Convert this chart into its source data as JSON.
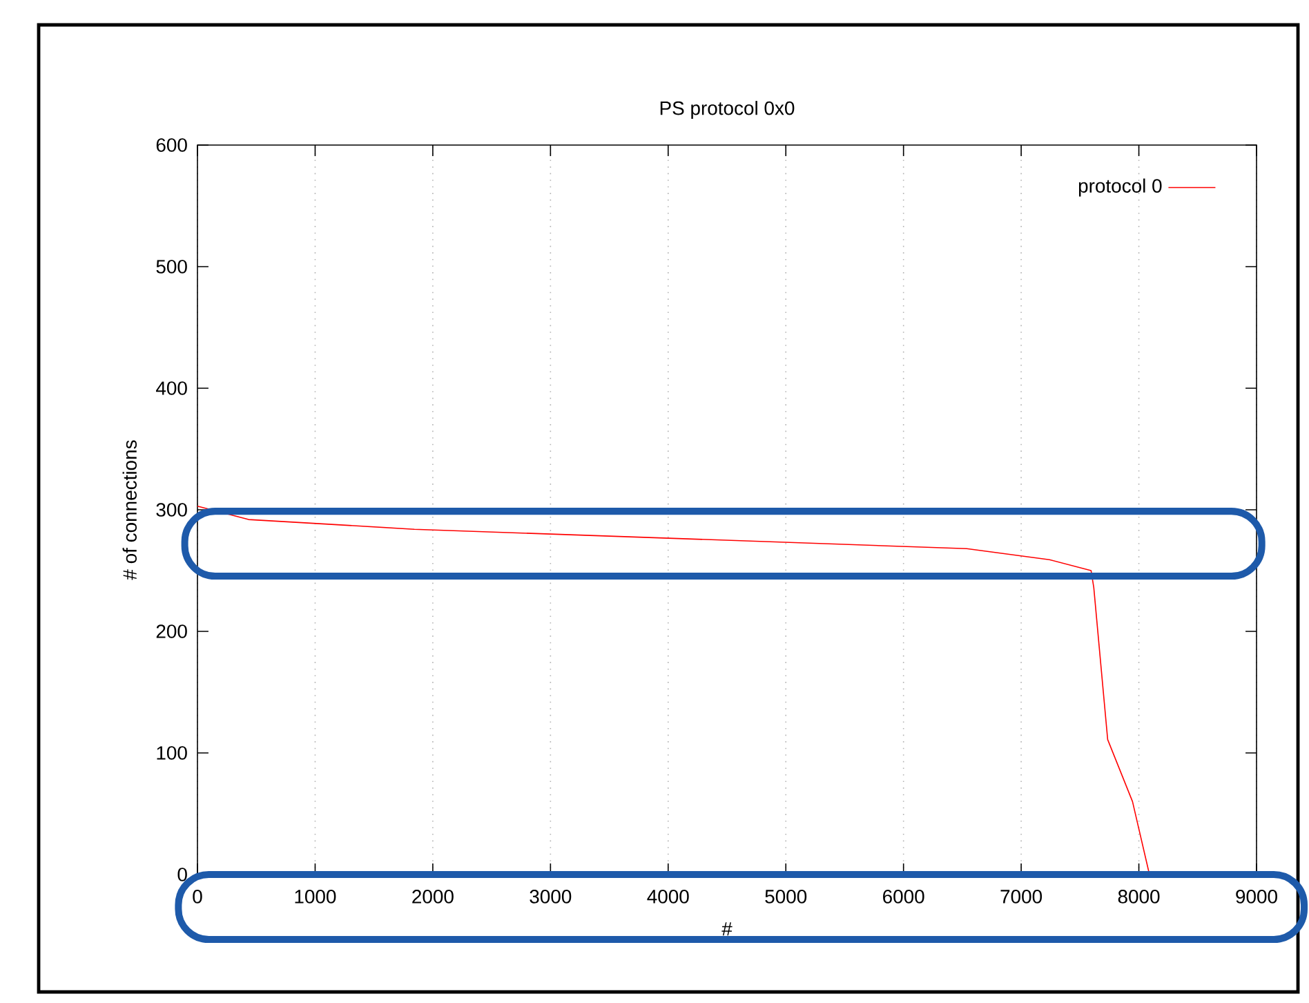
{
  "chart_data": {
    "type": "line",
    "title": "PS protocol 0x0",
    "xlabel": "#",
    "ylabel": "# of connections",
    "xlim": [
      0,
      9000
    ],
    "xticks": [
      0,
      1000,
      2000,
      3000,
      4000,
      5000,
      6000,
      7000,
      8000,
      9000
    ],
    "ylim": [
      0,
      600
    ],
    "yticks": [
      0,
      100,
      200,
      300,
      400,
      500,
      600
    ],
    "grid": "x",
    "legend": "top right",
    "series": [
      {
        "name": "protocol 0",
        "color": "#ff0000",
        "x": [
          0,
          434,
          1843,
          4190,
          6537,
          7240,
          7594,
          7617,
          7735,
          7946,
          8090
        ],
        "values": [
          303,
          292,
          284,
          276,
          268,
          259,
          250,
          236,
          111,
          60,
          0
        ]
      }
    ]
  }
}
